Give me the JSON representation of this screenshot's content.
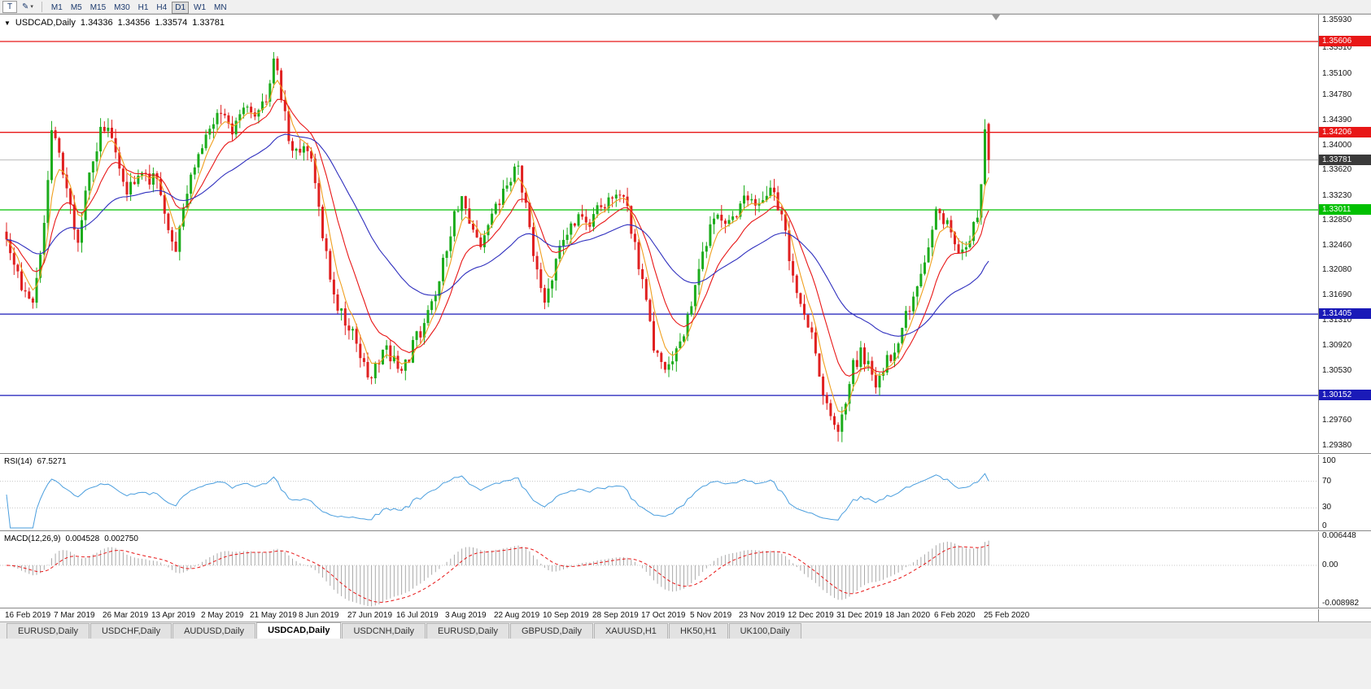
{
  "toolbar": {
    "chart_type_label": "T",
    "draw_tool_icon": "✎",
    "dropdown_caret": "▾",
    "timeframes": [
      "M1",
      "M5",
      "M15",
      "M30",
      "H1",
      "H4",
      "D1",
      "W1",
      "MN"
    ],
    "active_timeframe": "D1"
  },
  "chart": {
    "collapse_arrow": "▼",
    "header": {
      "symbol": "USDCAD,Daily",
      "open": "1.34336",
      "high": "1.34356",
      "low": "1.33574",
      "close": "1.33781"
    },
    "price_axis_ticks": [
      "1.35930",
      "1.35510",
      "1.35100",
      "1.34780",
      "1.34390",
      "1.34000",
      "1.33620",
      "1.33230",
      "1.32850",
      "1.32460",
      "1.32080",
      "1.31690",
      "1.31310",
      "1.30920",
      "1.30530",
      "1.29760",
      "1.29380"
    ],
    "levels": [
      {
        "name": "resistance-upper",
        "label": "1.35606",
        "value": 1.35606,
        "color": "#e81717"
      },
      {
        "name": "resistance-lower",
        "label": "1.34206",
        "value": 1.34206,
        "color": "#e81717"
      },
      {
        "name": "pivot-green",
        "label": "1.33011",
        "value": 1.33011,
        "color": "#00c000"
      },
      {
        "name": "support-upper",
        "label": "1.31405",
        "value": 1.31405,
        "color": "#1a1ab8"
      },
      {
        "name": "support-lower",
        "label": "1.30152",
        "value": 1.30152,
        "color": "#1a1ab8"
      }
    ],
    "current_price": {
      "label": "1.33781",
      "value": 1.33781,
      "badge_color": "#3a3a3a",
      "line_color": "#bcbcbc"
    }
  },
  "rsi": {
    "name": "RSI(14)",
    "value": "67.5271",
    "period": 14,
    "line_color": "#4a9ede",
    "ticks": [
      "100",
      "70",
      "30",
      "0"
    ],
    "level_lines": [
      70,
      30
    ]
  },
  "macd": {
    "name": "MACD(12,26,9)",
    "main_value": "0.004528",
    "signal_value": "0.002750",
    "fast": 12,
    "slow": 26,
    "signal": 9,
    "histogram_color": "#a9a9a9",
    "signal_color": "#e81717",
    "ticks": [
      "0.006448",
      "0.00",
      "-0.008982"
    ],
    "max": 0.006448,
    "min": -0.008982
  },
  "time_axis": {
    "labels": [
      "16 Feb 2019",
      "7 Mar 2019",
      "26 Mar 2019",
      "13 Apr 2019",
      "2 May 2019",
      "21 May 2019",
      "8 Jun 2019",
      "27 Jun 2019",
      "16 Jul 2019",
      "3 Aug 2019",
      "22 Aug 2019",
      "10 Sep 2019",
      "28 Sep 2019",
      "17 Oct 2019",
      "5 Nov 2019",
      "23 Nov 2019",
      "12 Dec 2019",
      "31 Dec 2019",
      "18 Jan 2020",
      "6 Feb 2020",
      "25 Feb 2020"
    ],
    "bars_per_label": 13
  },
  "tabs": [
    "EURUSD,Daily",
    "USDCHF,Daily",
    "AUDUSD,Daily",
    "USDCAD,Daily",
    "USDCNH,Daily",
    "EURUSD,Daily",
    "GBPUSD,Daily",
    "XAUUSD,H1",
    "HK50,H1",
    "UK100,Daily"
  ],
  "active_tab_index": 3,
  "chart_data": {
    "type": "candlestick",
    "symbol": "USDCAD",
    "timeframe": "Daily",
    "bar_count": 262,
    "bar_spacing": 4.625,
    "x_start": 8,
    "ylim": [
      1.2925,
      1.3602
    ],
    "seed": 7,
    "bull_color": "#1cac1c",
    "bear_color": "#e02020",
    "last_bar": {
      "open": 1.34336,
      "high": 1.34356,
      "low": 1.33574,
      "close": 1.33781
    },
    "moving_averages": [
      {
        "name": "fast-ma",
        "period": 5,
        "color": "#f0a020"
      },
      {
        "name": "medium-ma",
        "period": 13,
        "color": "#e81717"
      },
      {
        "name": "slow-ma",
        "period": 40,
        "color": "#2f2fbe"
      }
    ],
    "price_waypoints": [
      [
        0,
        1.3248
      ],
      [
        3,
        1.32
      ],
      [
        5,
        1.3165
      ],
      [
        7,
        1.3155
      ],
      [
        9,
        1.324
      ],
      [
        11,
        1.334
      ],
      [
        12,
        1.342
      ],
      [
        14,
        1.339
      ],
      [
        16,
        1.333
      ],
      [
        18,
        1.327
      ],
      [
        19,
        1.3255
      ],
      [
        21,
        1.332
      ],
      [
        23,
        1.338
      ],
      [
        25,
        1.342
      ],
      [
        27,
        1.343
      ],
      [
        29,
        1.339
      ],
      [
        31,
        1.335
      ],
      [
        32,
        1.3335
      ],
      [
        34,
        1.335
      ],
      [
        36,
        1.3365
      ],
      [
        38,
        1.335
      ],
      [
        40,
        1.3345
      ],
      [
        42,
        1.33
      ],
      [
        44,
        1.3245
      ],
      [
        45,
        1.323
      ],
      [
        47,
        1.33
      ],
      [
        49,
        1.336
      ],
      [
        51,
        1.3385
      ],
      [
        52,
        1.34
      ],
      [
        54,
        1.343
      ],
      [
        56,
        1.344
      ],
      [
        58,
        1.3445
      ],
      [
        60,
        1.3425
      ],
      [
        62,
        1.344
      ],
      [
        63,
        1.345
      ],
      [
        65,
        1.3455
      ],
      [
        67,
        1.3445
      ],
      [
        69,
        1.347
      ],
      [
        70,
        1.35
      ],
      [
        71,
        1.3545
      ],
      [
        72,
        1.352
      ],
      [
        73,
        1.348
      ],
      [
        75,
        1.341
      ],
      [
        77,
        1.339
      ],
      [
        79,
        1.34
      ],
      [
        81,
        1.337
      ],
      [
        83,
        1.33
      ],
      [
        85,
        1.323
      ],
      [
        87,
        1.317
      ],
      [
        89,
        1.314
      ],
      [
        91,
        1.3125
      ],
      [
        93,
        1.309
      ],
      [
        95,
        1.306
      ],
      [
        97,
        1.3045
      ],
      [
        99,
        1.307
      ],
      [
        101,
        1.3085
      ],
      [
        103,
        1.307
      ],
      [
        105,
        1.3045
      ],
      [
        107,
        1.3075
      ],
      [
        109,
        1.3105
      ],
      [
        111,
        1.3125
      ],
      [
        113,
        1.315
      ],
      [
        115,
        1.32
      ],
      [
        117,
        1.3245
      ],
      [
        119,
        1.329
      ],
      [
        121,
        1.332
      ],
      [
        123,
        1.329
      ],
      [
        125,
        1.3265
      ],
      [
        126,
        1.325
      ],
      [
        128,
        1.3275
      ],
      [
        130,
        1.33
      ],
      [
        132,
        1.333
      ],
      [
        134,
        1.3345
      ],
      [
        136,
        1.338
      ],
      [
        137,
        1.333
      ],
      [
        139,
        1.328
      ],
      [
        141,
        1.32
      ],
      [
        143,
        1.315
      ],
      [
        145,
        1.319
      ],
      [
        147,
        1.324
      ],
      [
        149,
        1.327
      ],
      [
        151,
        1.3285
      ],
      [
        153,
        1.329
      ],
      [
        155,
        1.3275
      ],
      [
        157,
        1.33
      ],
      [
        159,
        1.331
      ],
      [
        161,
        1.332
      ],
      [
        163,
        1.333
      ],
      [
        165,
        1.33
      ],
      [
        167,
        1.3245
      ],
      [
        169,
        1.319
      ],
      [
        171,
        1.312
      ],
      [
        173,
        1.307
      ],
      [
        175,
        1.3045
      ],
      [
        177,
        1.307
      ],
      [
        179,
        1.309
      ],
      [
        181,
        1.314
      ],
      [
        183,
        1.318
      ],
      [
        185,
        1.324
      ],
      [
        187,
        1.327
      ],
      [
        189,
        1.329
      ],
      [
        191,
        1.327
      ],
      [
        193,
        1.329
      ],
      [
        195,
        1.331
      ],
      [
        197,
        1.3325
      ],
      [
        199,
        1.3315
      ],
      [
        201,
        1.331
      ],
      [
        203,
        1.333
      ],
      [
        205,
        1.331
      ],
      [
        206,
        1.329
      ],
      [
        208,
        1.323
      ],
      [
        210,
        1.317
      ],
      [
        212,
        1.315
      ],
      [
        214,
        1.311
      ],
      [
        216,
        1.305
      ],
      [
        218,
        1.3
      ],
      [
        220,
        1.2975
      ],
      [
        221,
        1.296
      ],
      [
        223,
        1.301
      ],
      [
        225,
        1.306
      ],
      [
        227,
        1.308
      ],
      [
        229,
        1.306
      ],
      [
        231,
        1.3035
      ],
      [
        233,
        1.306
      ],
      [
        234,
        1.3068
      ],
      [
        236,
        1.309
      ],
      [
        238,
        1.312
      ],
      [
        240,
        1.315
      ],
      [
        242,
        1.319
      ],
      [
        244,
        1.323
      ],
      [
        246,
        1.327
      ],
      [
        247,
        1.33
      ],
      [
        249,
        1.329
      ],
      [
        251,
        1.327
      ],
      [
        252,
        1.325
      ],
      [
        254,
        1.3235
      ],
      [
        256,
        1.326
      ],
      [
        258,
        1.329
      ],
      [
        259,
        1.334
      ],
      [
        260,
        1.343
      ],
      [
        261,
        1.33781
      ]
    ]
  }
}
